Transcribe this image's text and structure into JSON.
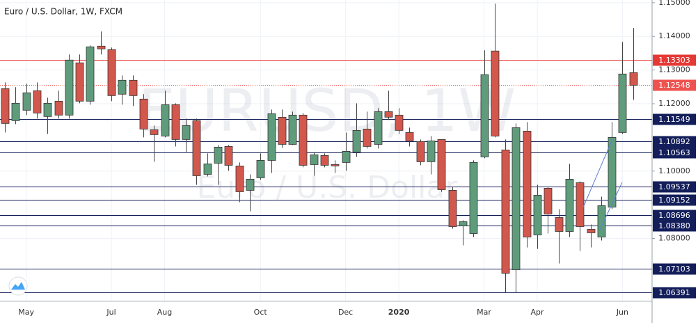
{
  "chart_data": {
    "type": "candlestick",
    "title": "Euro / U.S. Dollar, 1W, FXCM",
    "watermark": [
      "EURUSD, 1W",
      "Euro / U.S. Dollar"
    ],
    "categories": [
      null,
      null,
      "May",
      null,
      null,
      null,
      null,
      null,
      null,
      null,
      "Jul",
      null,
      null,
      null,
      null,
      "Aug",
      null,
      null,
      null,
      null,
      null,
      null,
      null,
      null,
      "Oct",
      null,
      null,
      null,
      null,
      null,
      null,
      null,
      "Dec",
      null,
      null,
      null,
      null,
      "2020",
      null,
      null,
      null,
      null,
      null,
      null,
      null,
      "Mar",
      null,
      null,
      null,
      null,
      "Apr",
      null,
      null,
      null,
      null,
      null,
      null,
      null,
      "Jun",
      null
    ],
    "ohlc": [
      [
        1.12448,
        1.12634,
        1.11145,
        1.11414
      ],
      [
        1.11497,
        1.1249,
        1.11393,
        1.12014
      ],
      [
        1.11807,
        1.12593,
        1.11662,
        1.12324
      ],
      [
        1.12386,
        1.12634,
        1.11559,
        1.11724
      ],
      [
        1.11621,
        1.12179,
        1.11103,
        1.12014
      ],
      [
        1.12076,
        1.12386,
        1.11559,
        1.11662
      ],
      [
        1.11662,
        1.13462,
        1.11559,
        1.13297
      ],
      [
        1.13214,
        1.13462,
        1.12014,
        1.12076
      ],
      [
        1.12076,
        1.13731,
        1.11972,
        1.1369
      ],
      [
        1.1371,
        1.14145,
        1.13462,
        1.13628
      ],
      [
        1.13607,
        1.13669,
        1.12076,
        1.12241
      ],
      [
        1.12283,
        1.12841,
        1.11972,
        1.12697
      ],
      [
        1.12697,
        1.12841,
        1.11931,
        1.12241
      ],
      [
        1.12138,
        1.12283,
        1.11,
        1.11248
      ],
      [
        1.11228,
        1.11352,
        1.10276,
        1.11083
      ],
      [
        1.11041,
        1.12386,
        1.11,
        1.11972
      ],
      [
        1.11972,
        1.12014,
        1.10731,
        1.10938
      ],
      [
        1.10938,
        1.11559,
        1.10566,
        1.11352
      ],
      [
        1.11497,
        1.11559,
        1.09593,
        1.09862
      ],
      [
        1.09903,
        1.10524,
        1.09841,
        1.10214
      ],
      [
        1.10234,
        1.10772,
        1.09593,
        1.1071
      ],
      [
        1.10731,
        1.10772,
        1.10007,
        1.10172
      ],
      [
        1.10152,
        1.10255,
        1.09076,
        1.09386
      ],
      [
        1.09428,
        1.09903,
        1.08807,
        1.09759
      ],
      [
        1.098,
        1.10524,
        1.09738,
        1.10317
      ],
      [
        1.10317,
        1.11828,
        1.09945,
        1.11703
      ],
      [
        1.116,
        1.11828,
        1.1069,
        1.10793
      ],
      [
        1.10793,
        1.11765,
        1.10772,
        1.11662
      ],
      [
        1.11662,
        1.11724,
        1.1011,
        1.10172
      ],
      [
        1.10193,
        1.10566,
        1.09862,
        1.10483
      ],
      [
        1.10462,
        1.10524,
        1.1011,
        1.10172
      ],
      [
        1.10193,
        1.10317,
        1.09945,
        1.10152
      ],
      [
        1.10255,
        1.11145,
        1.10007,
        1.10586
      ],
      [
        1.10566,
        1.12014,
        1.10421,
        1.11207
      ],
      [
        1.11248,
        1.11765,
        1.10669,
        1.10731
      ],
      [
        1.10793,
        1.11869,
        1.10669,
        1.11765
      ],
      [
        1.11765,
        1.12386,
        1.11517,
        1.116
      ],
      [
        1.11662,
        1.11869,
        1.11103,
        1.11207
      ],
      [
        1.11145,
        1.1129,
        1.10731,
        1.10897
      ],
      [
        1.10876,
        1.10938,
        1.10172,
        1.10276
      ],
      [
        1.10276,
        1.11041,
        1.09903,
        1.10897
      ],
      [
        1.10938,
        1.10938,
        1.09386,
        1.09448
      ],
      [
        1.09428,
        1.09531,
        1.0829,
        1.08352
      ],
      [
        1.08372,
        1.08538,
        1.07793,
        1.08497
      ],
      [
        1.08145,
        1.10317,
        1.08041,
        1.10255
      ],
      [
        1.10421,
        1.13586,
        1.10379,
        1.12862
      ],
      [
        1.13566,
        1.14972,
        1.11,
        1.11041
      ],
      [
        1.10628,
        1.10938,
        1.06386,
        1.06966
      ],
      [
        1.07069,
        1.11414,
        1.06386,
        1.1129
      ],
      [
        1.11186,
        1.11455,
        1.07731,
        1.08041
      ],
      [
        1.08103,
        1.09593,
        1.0769,
        1.09283
      ],
      [
        1.0949,
        1.09531,
        1.08145,
        1.08724
      ],
      [
        1.08621,
        1.08869,
        1.07255,
        1.08207
      ],
      [
        1.08207,
        1.10214,
        1.08041,
        1.09759
      ],
      [
        1.09655,
        1.09697,
        1.07628,
        1.08352
      ],
      [
        1.08269,
        1.08414,
        1.07731,
        1.08166
      ],
      [
        1.08041,
        1.09241,
        1.07938,
        1.08972
      ],
      [
        1.08931,
        1.11455,
        1.08869,
        1.11
      ],
      [
        1.11145,
        1.13834,
        1.11103,
        1.12883
      ],
      [
        1.12924,
        1.14248,
        1.12117,
        1.12548
      ]
    ],
    "up_color": "#5e9c7c",
    "down_color": "#d2574c",
    "ylim": [
      1.0615,
      1.1508
    ],
    "yticks": [
      {
        "value": 1.15,
        "label": "1.15000"
      },
      {
        "value": 1.14,
        "label": "1.14000"
      },
      {
        "value": 1.13,
        "label": "1.13000"
      },
      {
        "value": 1.12,
        "label": "1.12000"
      },
      {
        "value": 1.1,
        "label": "1.10000"
      },
      {
        "value": 1.08,
        "label": "1.08000"
      }
    ],
    "grid": true,
    "levels": [
      {
        "value": 1.13303,
        "color": "#e53935",
        "style": "solid"
      },
      {
        "value": 1.12548,
        "color": "#ef5350",
        "style": "dotted"
      },
      {
        "value": 1.11549,
        "color": "#131e5a",
        "style": "solid"
      },
      {
        "value": 1.10892,
        "color": "#131e5a",
        "style": "solid"
      },
      {
        "value": 1.10563,
        "color": "#131e5a",
        "style": "solid"
      },
      {
        "value": 1.09537,
        "color": "#131e5a",
        "style": "solid"
      },
      {
        "value": 1.09152,
        "color": "#131e5a",
        "style": "solid"
      },
      {
        "value": 1.08696,
        "color": "#131e5a",
        "style": "solid"
      },
      {
        "value": 1.0838,
        "label": "1.08380",
        "color": "#131e5a",
        "style": "solid"
      },
      {
        "value": 1.07103,
        "color": "#131e5a",
        "style": "solid"
      },
      {
        "value": 1.06391,
        "color": "#131e5a",
        "style": "solid"
      }
    ]
  }
}
